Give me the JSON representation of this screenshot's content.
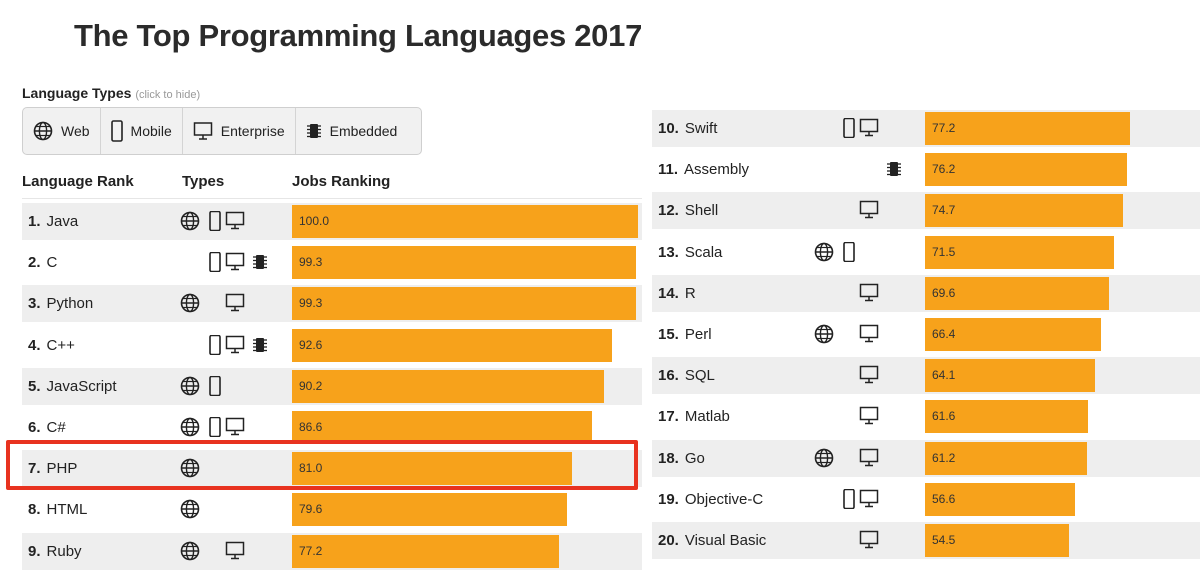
{
  "title": "The Top Programming Languages 2017",
  "filter": {
    "header": "Language Types",
    "hint": "(click to hide)",
    "buttons": [
      {
        "label": "Web",
        "icon": "globe-icon"
      },
      {
        "label": "Mobile",
        "icon": "mobile-icon"
      },
      {
        "label": "Enterprise",
        "icon": "monitor-icon"
      },
      {
        "label": "Embedded",
        "icon": "chip-icon"
      }
    ]
  },
  "columns": {
    "rank": "Language Rank",
    "types": "Types",
    "jobs": "Jobs Ranking"
  },
  "colors": {
    "bar": "#f7a21b",
    "highlight": "#e8321f",
    "shade": "#eeeeee"
  },
  "chart_data": {
    "type": "bar",
    "title": "The Top Programming Languages 2017",
    "ylabel": "Jobs Ranking",
    "ylim": [
      0,
      100
    ],
    "highlighted": "PHP",
    "rows": [
      {
        "rank": "1.",
        "name": "Java",
        "value": "100.0",
        "types": [
          "web",
          "mobile",
          "enterprise"
        ]
      },
      {
        "rank": "2.",
        "name": "C",
        "value": "99.3",
        "types": [
          "mobile",
          "enterprise",
          "embedded"
        ]
      },
      {
        "rank": "3.",
        "name": "Python",
        "value": "99.3",
        "types": [
          "web",
          "enterprise"
        ]
      },
      {
        "rank": "4.",
        "name": "C++",
        "value": "92.6",
        "types": [
          "mobile",
          "enterprise",
          "embedded"
        ]
      },
      {
        "rank": "5.",
        "name": "JavaScript",
        "value": "90.2",
        "types": [
          "web",
          "mobile"
        ]
      },
      {
        "rank": "6.",
        "name": "C#",
        "value": "86.6",
        "types": [
          "web",
          "mobile",
          "enterprise"
        ]
      },
      {
        "rank": "7.",
        "name": "PHP",
        "value": "81.0",
        "types": [
          "web"
        ]
      },
      {
        "rank": "8.",
        "name": "HTML",
        "value": "79.6",
        "types": [
          "web"
        ]
      },
      {
        "rank": "9.",
        "name": "Ruby",
        "value": "77.2",
        "types": [
          "web",
          "enterprise"
        ]
      },
      {
        "rank": "10.",
        "name": "Swift",
        "value": "77.2",
        "types": [
          "mobile",
          "enterprise"
        ]
      },
      {
        "rank": "11.",
        "name": "Assembly",
        "value": "76.2",
        "types": [
          "embedded"
        ]
      },
      {
        "rank": "12.",
        "name": "Shell",
        "value": "74.7",
        "types": [
          "enterprise"
        ]
      },
      {
        "rank": "13.",
        "name": "Scala",
        "value": "71.5",
        "types": [
          "web",
          "mobile"
        ]
      },
      {
        "rank": "14.",
        "name": "R",
        "value": "69.6",
        "types": [
          "enterprise"
        ]
      },
      {
        "rank": "15.",
        "name": "Perl",
        "value": "66.4",
        "types": [
          "web",
          "enterprise"
        ]
      },
      {
        "rank": "16.",
        "name": "SQL",
        "value": "64.1",
        "types": [
          "enterprise"
        ]
      },
      {
        "rank": "17.",
        "name": "Matlab",
        "value": "61.6",
        "types": [
          "enterprise"
        ]
      },
      {
        "rank": "18.",
        "name": "Go",
        "value": "61.2",
        "types": [
          "web",
          "enterprise"
        ]
      },
      {
        "rank": "19.",
        "name": "Objective-C",
        "value": "56.6",
        "types": [
          "mobile",
          "enterprise"
        ]
      },
      {
        "rank": "20.",
        "name": "Visual Basic",
        "value": "54.5",
        "types": [
          "enterprise"
        ]
      }
    ]
  }
}
